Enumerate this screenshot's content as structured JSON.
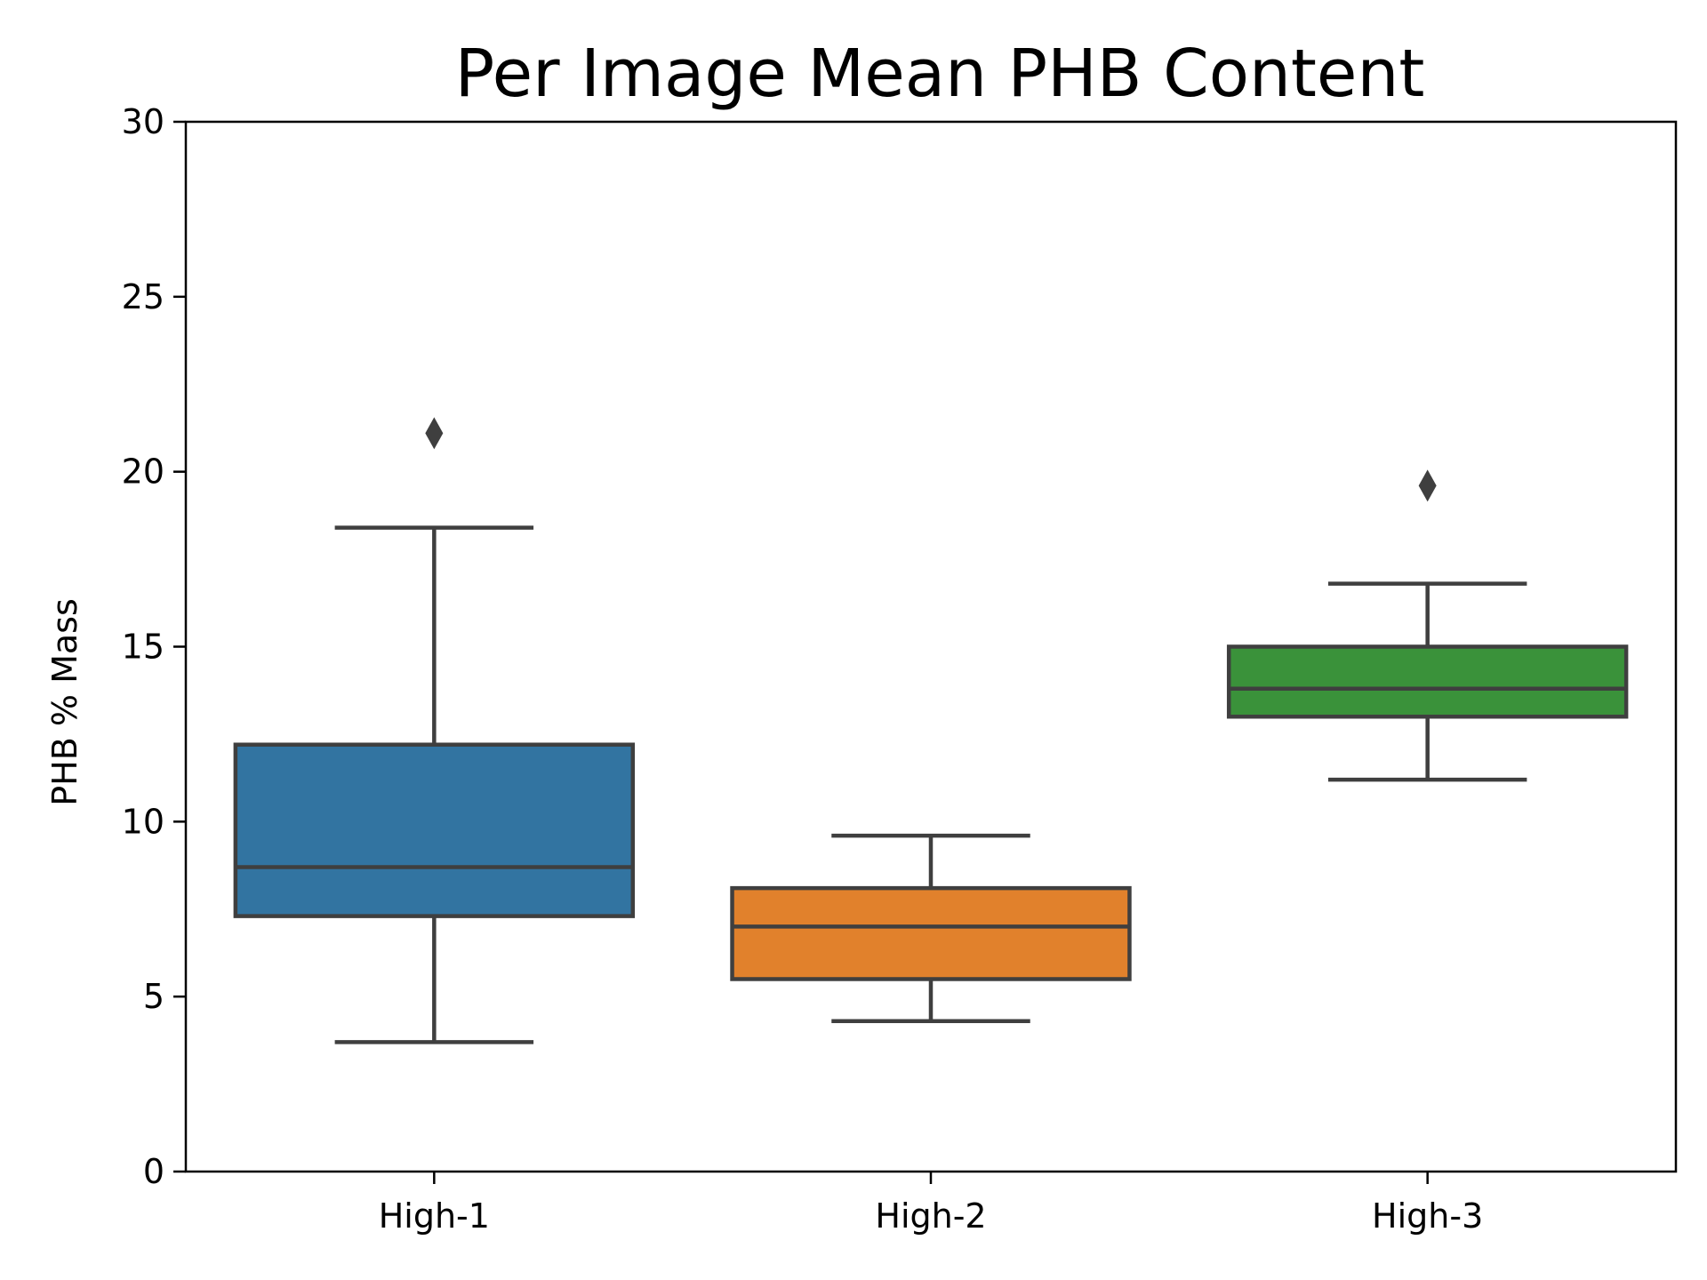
{
  "chart_data": {
    "type": "box",
    "title": "Per Image Mean PHB Content",
    "xlabel": "",
    "ylabel": "PHB % Mass",
    "ylim": [
      0,
      30
    ],
    "yticks": [
      "0",
      "5",
      "10",
      "15",
      "20",
      "25",
      "30"
    ],
    "categories": [
      "High-1",
      "High-2",
      "High-3"
    ],
    "grid": false,
    "legend": "none",
    "boxes": [
      {
        "category": "High-1",
        "whisker_low": 3.7,
        "q1": 7.3,
        "median": 8.7,
        "q3": 12.2,
        "whisker_high": 18.4,
        "outliers": [
          21.1
        ],
        "color": "#3274a1"
      },
      {
        "category": "High-2",
        "whisker_low": 4.3,
        "q1": 5.5,
        "median": 7.0,
        "q3": 8.1,
        "whisker_high": 9.6,
        "outliers": [],
        "color": "#e1812c"
      },
      {
        "category": "High-3",
        "whisker_low": 11.2,
        "q1": 13.0,
        "median": 13.8,
        "q3": 15.0,
        "whisker_high": 16.8,
        "outliers": [
          19.6
        ],
        "color": "#3a923a"
      }
    ],
    "line_color": "#3f3f3f"
  }
}
